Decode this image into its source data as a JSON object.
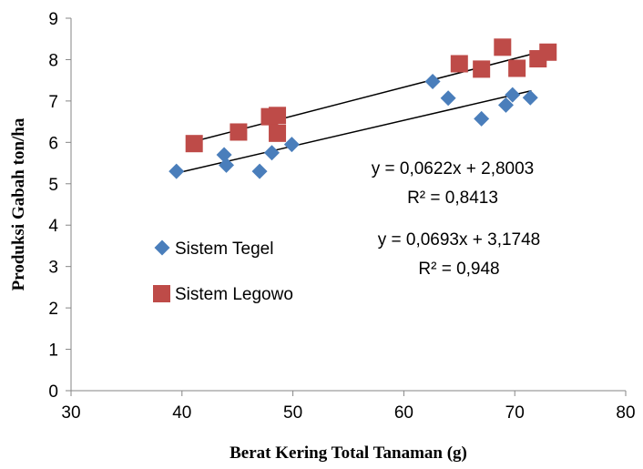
{
  "chart_data": {
    "type": "scatter",
    "title": "",
    "xlabel": "Berat Kering Total Tanaman (g)",
    "ylabel": "Produksi Gabah ton/ha",
    "xlim": [
      30,
      80
    ],
    "ylim": [
      0,
      9
    ],
    "xticks": [
      "30",
      "40",
      "50",
      "60",
      "70",
      "80"
    ],
    "yticks": [
      "0",
      "1",
      "2",
      "3",
      "4",
      "5",
      "6",
      "7",
      "8",
      "9"
    ],
    "grid": false,
    "legend_position": "left",
    "series": [
      {
        "name": "Sistem Tegel",
        "marker": "diamond",
        "color": "#4a7ebb",
        "points": [
          [
            39.5,
            5.3
          ],
          [
            43.8,
            5.7
          ],
          [
            44.0,
            5.45
          ],
          [
            47.0,
            5.3
          ],
          [
            48.1,
            5.75
          ],
          [
            49.9,
            5.95
          ],
          [
            62.6,
            7.47
          ],
          [
            64.0,
            7.07
          ],
          [
            67.0,
            6.57
          ],
          [
            69.2,
            6.9
          ],
          [
            69.8,
            7.15
          ],
          [
            71.4,
            7.08
          ]
        ],
        "trendline": {
          "slope": 0.0622,
          "intercept": 2.8003,
          "x_range": [
            39.5,
            71.5
          ]
        },
        "equation": "y = 0,0622x + 2,8003",
        "r2": "R² = 0,8413"
      },
      {
        "name": "Sistem Legowo",
        "marker": "square",
        "color": "#be4b48",
        "points": [
          [
            41.1,
            5.97
          ],
          [
            45.1,
            6.25
          ],
          [
            47.9,
            6.62
          ],
          [
            48.6,
            6.65
          ],
          [
            48.6,
            6.22
          ],
          [
            65.0,
            7.9
          ],
          [
            67.0,
            7.77
          ],
          [
            68.9,
            8.3
          ],
          [
            70.2,
            7.79
          ],
          [
            72.1,
            8.02
          ],
          [
            73.0,
            8.18
          ]
        ],
        "trendline": {
          "slope": 0.0693,
          "intercept": 3.1748,
          "x_range": [
            41.1,
            72.3
          ]
        },
        "equation": "y = 0,0693x + 3,1748",
        "r2": "R² = 0,948"
      }
    ]
  }
}
